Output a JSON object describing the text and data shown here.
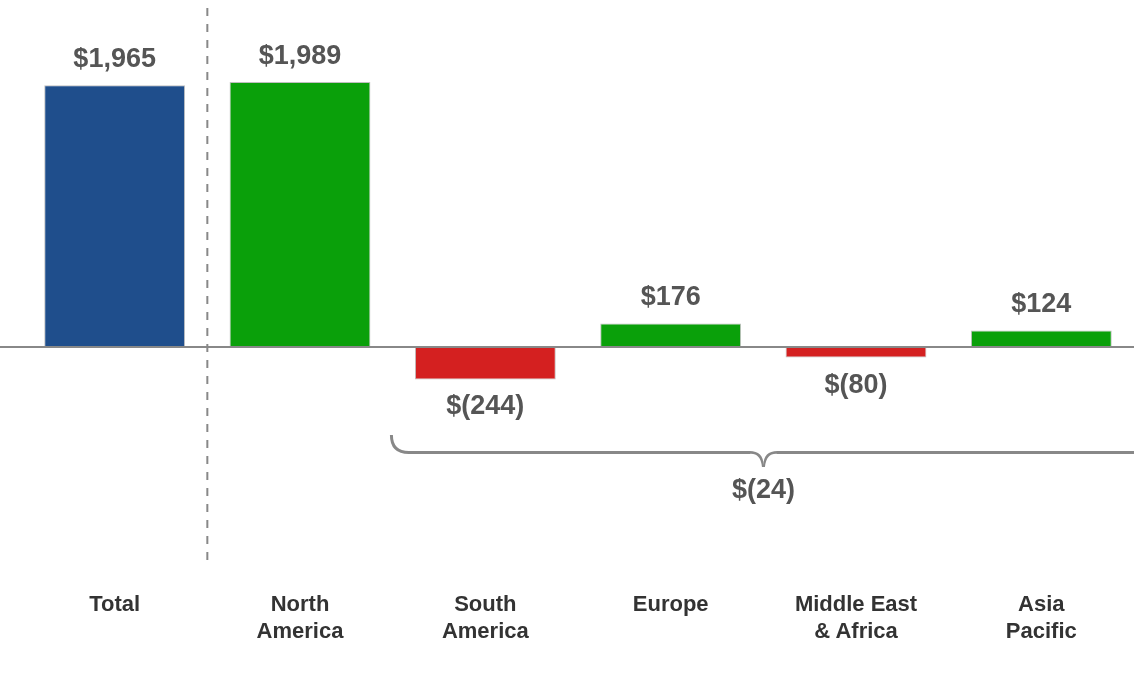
{
  "chart_data": {
    "type": "bar",
    "categories": [
      "Total",
      "North America",
      "South America",
      "Europe",
      "Middle East & Africa",
      "Asia Pacific"
    ],
    "values": [
      1965,
      1989,
      -244,
      176,
      -80,
      124
    ],
    "colors": [
      "#1f4e8c",
      "#0aa00a",
      "#d42020",
      "#0aa00a",
      "#d42020",
      "#0aa00a"
    ],
    "value_labels": [
      "$1,965",
      "$1,989",
      "$(244)",
      "$176",
      "$(80)",
      "$124"
    ],
    "annotations": [
      "$(24)"
    ]
  }
}
